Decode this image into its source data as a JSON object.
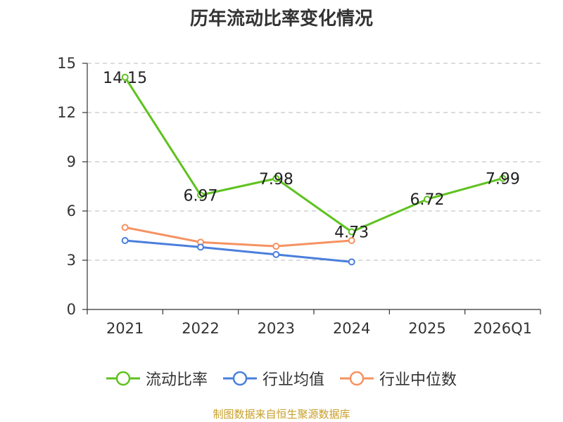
{
  "chart_data": {
    "type": "line",
    "title": "历年流动比率变化情况",
    "categories": [
      "2021",
      "2022",
      "2023",
      "2024",
      "2025",
      "2026Q1"
    ],
    "series": [
      {
        "name": "流动比率",
        "color": "#5ec21e",
        "values": [
          14.15,
          6.97,
          7.98,
          4.73,
          6.72,
          7.99
        ],
        "labels": [
          "14.15",
          "6.97",
          "7.98",
          "4.73",
          "6.72",
          "7.99"
        ]
      },
      {
        "name": "行业均值",
        "color": "#4a7fdc",
        "values": [
          4.2,
          3.8,
          3.35,
          2.9,
          null,
          null
        ]
      },
      {
        "name": "行业中位数",
        "color": "#f59262",
        "values": [
          5.0,
          4.1,
          3.85,
          4.2,
          null,
          null
        ]
      }
    ],
    "ylim": [
      0,
      15
    ],
    "yticks": [
      0,
      3,
      6,
      9,
      12,
      15
    ],
    "ytick_labels": [
      "0",
      "3",
      "6",
      "9",
      "12",
      "15"
    ],
    "grid": true,
    "legend_position": "bottom"
  },
  "source": "制图数据来自恒生聚源数据库"
}
